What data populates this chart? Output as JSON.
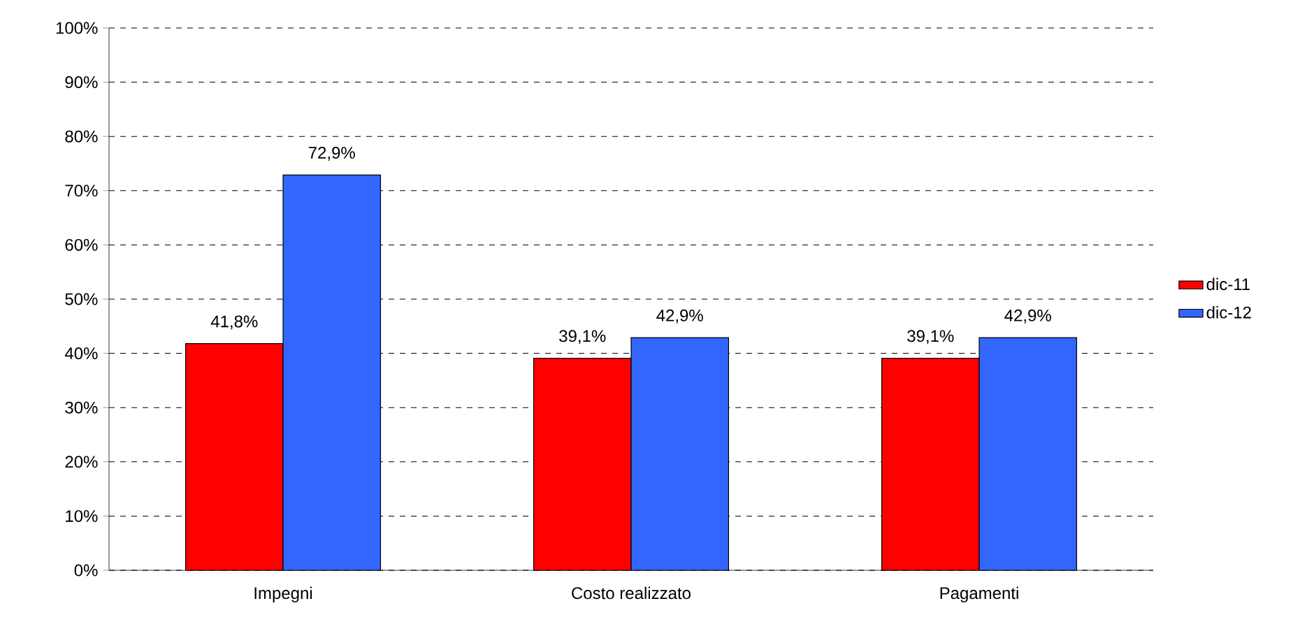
{
  "chart_data": {
    "type": "bar",
    "categories": [
      "Impegni",
      "Costo realizzato",
      "Pagamenti"
    ],
    "series": [
      {
        "name": "dic-11",
        "color": "#ff0000",
        "values": [
          41.8,
          39.1,
          39.1
        ],
        "value_labels": [
          "41,8%",
          "39,1%",
          "39,1%"
        ]
      },
      {
        "name": "dic-12",
        "color": "#3366ff",
        "values": [
          72.9,
          42.9,
          42.9
        ],
        "value_labels": [
          "72,9%",
          "42,9%",
          "42,9%"
        ]
      }
    ],
    "ylim": [
      0,
      100
    ],
    "yticks": [
      {
        "value": 0,
        "label": "0%"
      },
      {
        "value": 10,
        "label": "10%"
      },
      {
        "value": 20,
        "label": "20%"
      },
      {
        "value": 30,
        "label": "30%"
      },
      {
        "value": 40,
        "label": "40%"
      },
      {
        "value": 50,
        "label": "50%"
      },
      {
        "value": 60,
        "label": "60%"
      },
      {
        "value": 70,
        "label": "70%"
      },
      {
        "value": 80,
        "label": "80%"
      },
      {
        "value": 90,
        "label": "90%"
      },
      {
        "value": 100,
        "label": "100%"
      }
    ],
    "grid": "y",
    "legend": "right"
  }
}
